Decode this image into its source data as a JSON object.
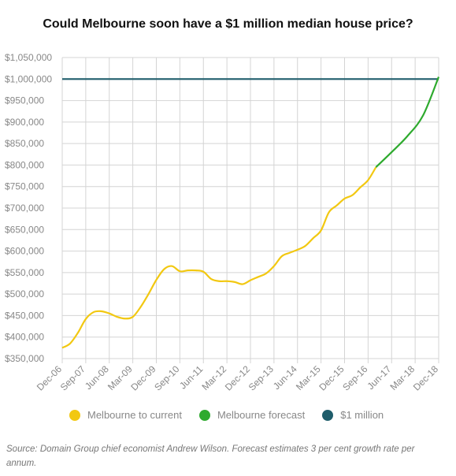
{
  "chart_data": {
    "type": "line",
    "title": "Could Melbourne soon have a $1 million median house price?",
    "xlabel": "",
    "ylabel": "",
    "ylim": [
      350000,
      1050000
    ],
    "y_ticks": [
      "$350,000",
      "$400,000",
      "$450,000",
      "$500,000",
      "$550,000",
      "$600,000",
      "$650,000",
      "$700,000",
      "$750,000",
      "$800,000",
      "$850,000",
      "$900,000",
      "$950,000",
      "$1,000,000",
      "$1,050,000"
    ],
    "x_ticks": [
      "Dec-06",
      "Sep-07",
      "Jun-08",
      "Mar-09",
      "Dec-09",
      "Sep-10",
      "Jun-11",
      "Mar-12",
      "Dec-12",
      "Sep-13",
      "Jun-14",
      "Mar-15",
      "Dec-15",
      "Sep-16",
      "Jun-17",
      "Mar-18",
      "Dec-18"
    ],
    "grid": true,
    "legend_position": "bottom",
    "series": [
      {
        "name": "Melbourne to current",
        "color": "#f2c811",
        "points": [
          [
            "Dec-06",
            375000
          ],
          [
            "Mar-07",
            385000
          ],
          [
            "Jun-07",
            410000
          ],
          [
            "Sep-07",
            442000
          ],
          [
            "Dec-07",
            458000
          ],
          [
            "Mar-08",
            460000
          ],
          [
            "Jun-08",
            455000
          ],
          [
            "Sep-08",
            447000
          ],
          [
            "Dec-08",
            443000
          ],
          [
            "Mar-09",
            447000
          ],
          [
            "Jun-09",
            470000
          ],
          [
            "Sep-09",
            500000
          ],
          [
            "Dec-09",
            533000
          ],
          [
            "Mar-10",
            558000
          ],
          [
            "Jun-10",
            565000
          ],
          [
            "Sep-10",
            553000
          ],
          [
            "Dec-10",
            555000
          ],
          [
            "Mar-11",
            555000
          ],
          [
            "Jun-11",
            552000
          ],
          [
            "Sep-11",
            535000
          ],
          [
            "Dec-11",
            530000
          ],
          [
            "Mar-12",
            530000
          ],
          [
            "Jun-12",
            528000
          ],
          [
            "Sep-12",
            523000
          ],
          [
            "Dec-12",
            532000
          ],
          [
            "Mar-13",
            540000
          ],
          [
            "Jun-13",
            548000
          ],
          [
            "Sep-13",
            565000
          ],
          [
            "Dec-13",
            588000
          ],
          [
            "Mar-14",
            596000
          ],
          [
            "Jun-14",
            603000
          ],
          [
            "Sep-14",
            612000
          ],
          [
            "Dec-14",
            630000
          ],
          [
            "Mar-15",
            648000
          ],
          [
            "Jun-15",
            690000
          ],
          [
            "Sep-15",
            706000
          ],
          [
            "Dec-15",
            722000
          ],
          [
            "Mar-16",
            730000
          ],
          [
            "Jun-16",
            748000
          ],
          [
            "Sep-16",
            765000
          ],
          [
            "Dec-16",
            795000
          ]
        ]
      },
      {
        "name": "Melbourne forecast",
        "color": "#2eaa2e",
        "points": [
          [
            "Dec-16",
            795000
          ],
          [
            "Jun-17",
            830000
          ],
          [
            "Dec-17",
            867000
          ],
          [
            "Jun-18",
            915000
          ],
          [
            "Dec-18",
            1005000
          ]
        ]
      },
      {
        "name": "$1 million",
        "color": "#1f5d6b",
        "points": [
          [
            "Dec-06",
            1000000
          ],
          [
            "Dec-18",
            1000000
          ]
        ]
      }
    ]
  },
  "source": "Source: Domain Group chief economist Andrew Wilson. Forecast estimates 3 per cent growth rate per annum."
}
